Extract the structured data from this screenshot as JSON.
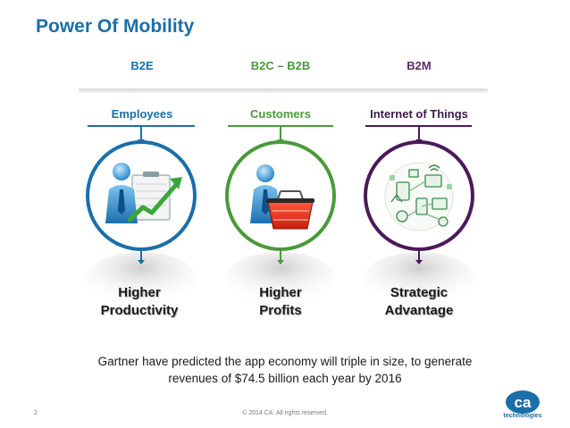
{
  "title": "Power Of Mobility",
  "columns": [
    {
      "header": "B2E",
      "subheader": "Employees",
      "outcome_line1": "Higher",
      "outcome_line2": "Productivity",
      "icon": "employee-chart-icon",
      "color": "#1a6fa8"
    },
    {
      "header": "B2C – B2B",
      "subheader": "Customers",
      "outcome_line1": "Higher",
      "outcome_line2": "Profits",
      "icon": "shopping-basket-icon",
      "color": "#4a9a3a"
    },
    {
      "header": "B2M",
      "subheader": "Internet of Things",
      "outcome_line1": "Strategic",
      "outcome_line2": "Advantage",
      "icon": "connected-devices-icon",
      "color": "#4a1a5a"
    }
  ],
  "note_line1": "Gartner have predicted the app economy will triple in size, to generate",
  "note_line2": "revenues of $74.5 billion each year by 2016",
  "footer": {
    "page": "2",
    "copyright": "© 2014 CA. All rights reserved.",
    "logo_text": "ca",
    "logo_sub": "technologies"
  }
}
